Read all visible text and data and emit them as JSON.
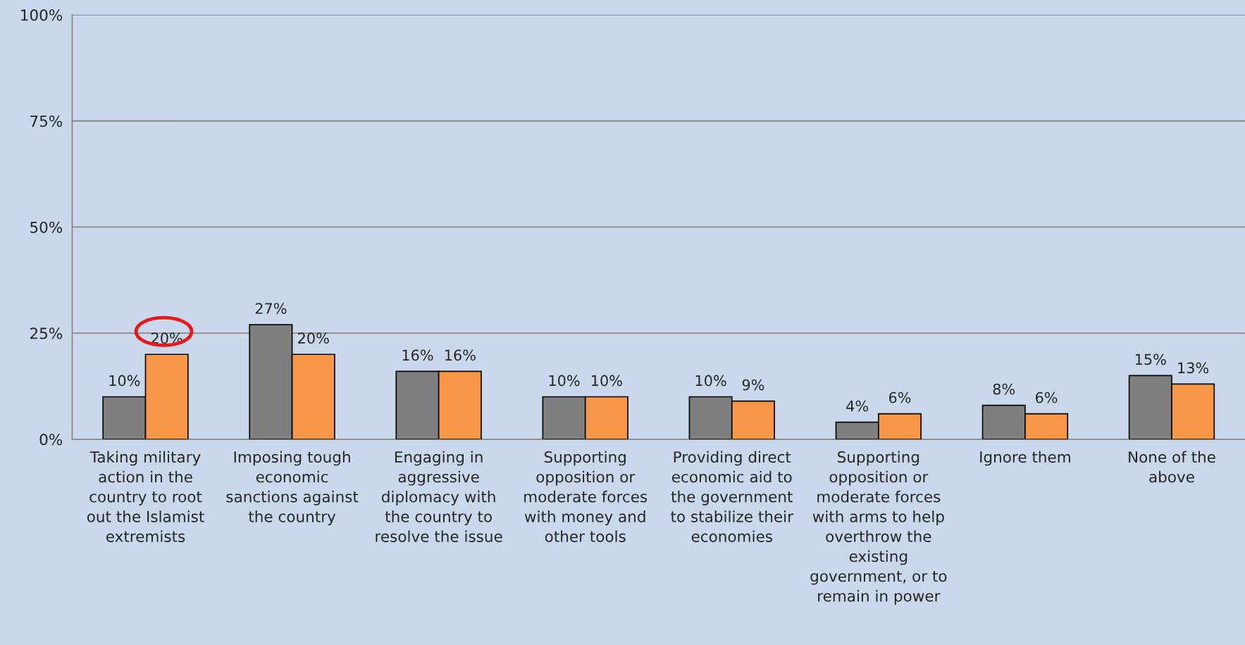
{
  "chart_data": {
    "type": "bar",
    "categories": [
      "Taking military\naction in the\ncountry to root\nout the Islamist\nextremists",
      "Imposing tough\neconomic\nsanctions against\nthe country",
      "Engaging in\naggressive\ndiplomacy with\nthe country to\nresolve the issue",
      "Supporting\nopposition or\nmoderate forces\nwith money and\nother tools",
      "Providing direct\neconomic aid to\nthe government\nto stabilize their\neconomies",
      "Supporting\nopposition or\nmoderate forces\nwith arms to help\noverthrow the\nexisting\ngovernment, or to\nremain in power",
      "Ignore them",
      "None of the\nabove"
    ],
    "series": [
      {
        "color": "#7f7f7f",
        "values": [
          10,
          27,
          16,
          10,
          10,
          4,
          8,
          15
        ],
        "value_labels": [
          "10%",
          "27%",
          "16%",
          "10%",
          "10%",
          "4%",
          "8%",
          "15%"
        ]
      },
      {
        "color": "#f79646",
        "values": [
          20,
          20,
          16,
          10,
          9,
          6,
          6,
          13
        ],
        "value_labels": [
          "20%",
          "20%",
          "16%",
          "10%",
          "9%",
          "6%",
          "6%",
          "13%"
        ]
      }
    ],
    "ylim": [
      0,
      100
    ],
    "yticks": [
      {
        "value": 0,
        "label": "0%"
      },
      {
        "value": 25,
        "label": "25%"
      },
      {
        "value": 50,
        "label": "50%"
      },
      {
        "value": 75,
        "label": "75%"
      },
      {
        "value": 100,
        "label": "100%"
      }
    ],
    "grid": "y",
    "legend": false
  }
}
